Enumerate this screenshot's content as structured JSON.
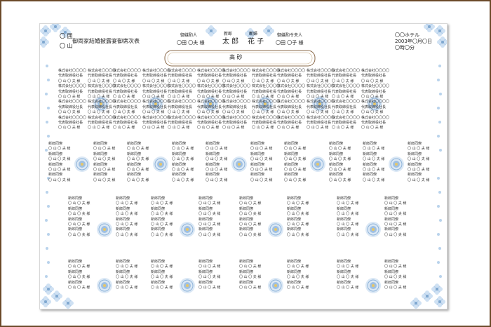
{
  "header": {
    "left_line1": "〇 囲",
    "left_title": "御両家結婚披露宴御席次表",
    "left_line2": "〇 山",
    "matchmaker_label": "御媒酌人",
    "matchmaker_name": "〇田 〇夫 様",
    "groom_label": "新郎",
    "groom_name": "太 郎",
    "bride_label": "新婦",
    "bride_name": "花 子",
    "matchmaker_wife_label": "御媒酌令夫人",
    "matchmaker_wife_name": "〇田 〇子 様",
    "venue": "〇〇ホテル",
    "date": "2003年〇月〇日",
    "time": "〇時〇分",
    "head_table": "高 砂"
  },
  "seat_company": "株式会社〇〇〇〇",
  "seat_title_corp": "代表取締役社長",
  "seat_friend": "新郎同僚",
  "seat_guest": "〇 山 〇 夫 様",
  "colors": {
    "frame": "#6b4a2a",
    "accent": "#9fc0e2",
    "dots": "#b9d3ec"
  }
}
